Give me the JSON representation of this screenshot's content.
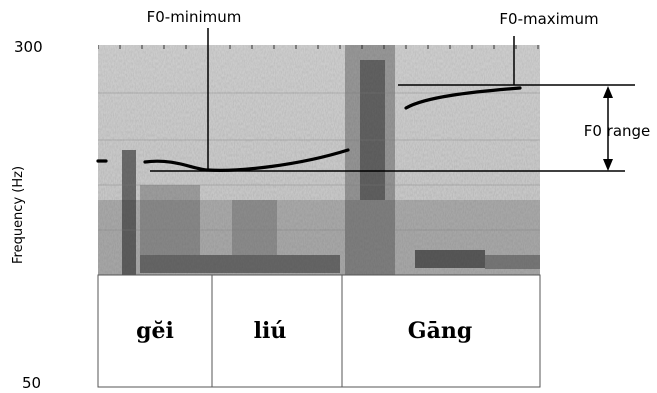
{
  "axis": {
    "y_label": "Frequency (Hz)",
    "y_top": "300",
    "y_bottom": "50"
  },
  "annotations": {
    "f0_minimum": "F0-minimum",
    "f0_maximum": "F0-maximum",
    "f0_range": "F0 range"
  },
  "syllables": [
    "gĕi",
    "liú",
    "Gāng"
  ],
  "colors": {
    "ink": "#000000",
    "spectrogram_bg": "#b9b9b9"
  }
}
